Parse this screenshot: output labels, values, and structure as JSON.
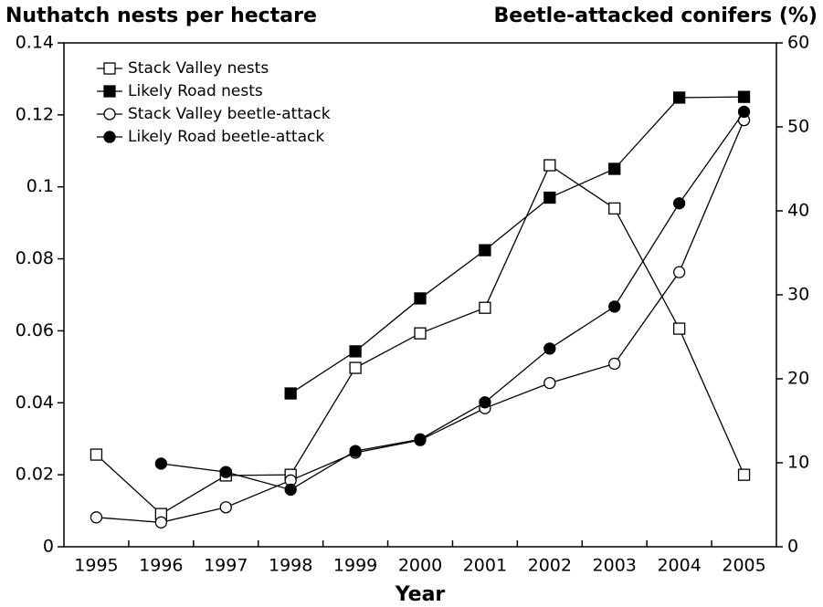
{
  "chart_data": {
    "type": "line",
    "y_label": "Nuthatch nests per hectare",
    "y2_label": "Beetle-attacked conifers (%)",
    "x_label": "Year",
    "categories": [
      "1995",
      "1996",
      "1997",
      "1998",
      "1999",
      "2000",
      "2001",
      "2002",
      "2003",
      "2004",
      "2005"
    ],
    "series": [
      {
        "name": "Stack Valley nests",
        "color": "#000000",
        "marker": "square",
        "filled": false,
        "axis": "y",
        "values": [
          0.0256,
          0.0091,
          0.0198,
          0.02,
          0.0497,
          0.0593,
          0.0664,
          0.106,
          0.094,
          0.0606,
          0.02
        ]
      },
      {
        "name": "Likely Road nests",
        "color": "#000000",
        "marker": "square",
        "filled": true,
        "axis": "y",
        "values": [
          null,
          null,
          null,
          0.0426,
          0.0543,
          0.069,
          0.0824,
          0.097,
          0.105,
          0.1248,
          0.125
        ]
      },
      {
        "name": "Stack Valley beetle-attack",
        "color": "#000000",
        "marker": "circle",
        "filled": false,
        "axis": "y2",
        "values": [
          3.5,
          2.9,
          4.7,
          7.9,
          11.2,
          12.7,
          16.5,
          19.5,
          21.8,
          32.7,
          50.8
        ]
      },
      {
        "name": "Likely Road beetle-attack",
        "color": "#000000",
        "marker": "circle",
        "filled": true,
        "axis": "y2",
        "values": [
          null,
          9.9,
          8.9,
          6.8,
          11.4,
          12.8,
          17.2,
          23.6,
          28.6,
          40.9,
          51.8
        ]
      }
    ],
    "ylim": [
      0,
      0.14
    ],
    "yticks": [
      0,
      0.02,
      0.04,
      0.06,
      0.08,
      0.1,
      0.12,
      0.14
    ],
    "y2lim": [
      0,
      60
    ],
    "y2ticks": [
      0,
      10,
      20,
      30,
      40,
      50,
      60
    ],
    "legend": "upper-left",
    "grid": false
  }
}
